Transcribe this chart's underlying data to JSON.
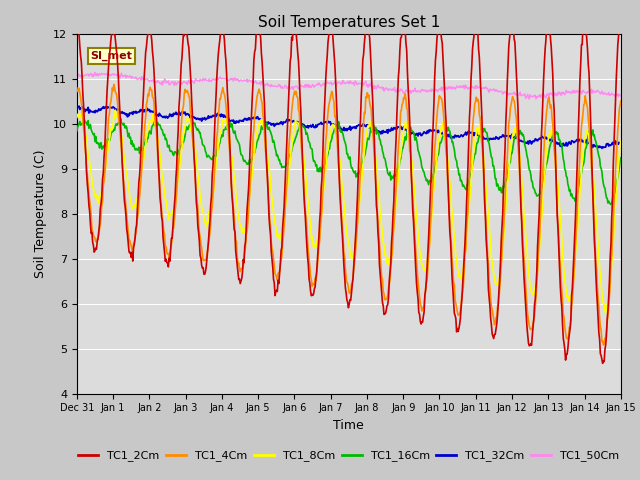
{
  "title": "Soil Temperatures Set 1",
  "xlabel": "Time",
  "ylabel": "Soil Temperature (C)",
  "ylim": [
    4.0,
    12.0
  ],
  "yticks": [
    4.0,
    5.0,
    6.0,
    7.0,
    8.0,
    9.0,
    10.0,
    11.0,
    12.0
  ],
  "fig_bg_color": "#c8c8c8",
  "plot_bg_color": "#dcdcdc",
  "annotation_text": "SI_met",
  "annotation_box_color": "#ffffcc",
  "annotation_box_edge": "#8b8000",
  "series_colors": {
    "TC1_2Cm": "#cc0000",
    "TC1_4Cm": "#ff8c00",
    "TC1_8Cm": "#ffff00",
    "TC1_16Cm": "#00bb00",
    "TC1_32Cm": "#0000cc",
    "TC1_50Cm": "#ff88ee"
  },
  "legend_colors": [
    "#cc0000",
    "#ff8c00",
    "#ffff00",
    "#00bb00",
    "#0000cc",
    "#ff88ee"
  ],
  "legend_labels": [
    "TC1_2Cm",
    "TC1_4Cm",
    "TC1_8Cm",
    "TC1_16Cm",
    "TC1_32Cm",
    "TC1_50Cm"
  ],
  "xtick_labels": [
    "Dec 31",
    "Jan 1",
    "Jan 2",
    "Jan 3",
    "Jan 4",
    "Jan 5",
    "Jan 6",
    "Jan 7",
    "Jan 8",
    "Jan 9",
    "Jan 10",
    "Jan 11",
    "Jan 12",
    "Jan 13",
    "Jan 14",
    "Jan 15"
  ],
  "n_points": 720,
  "days": 15
}
